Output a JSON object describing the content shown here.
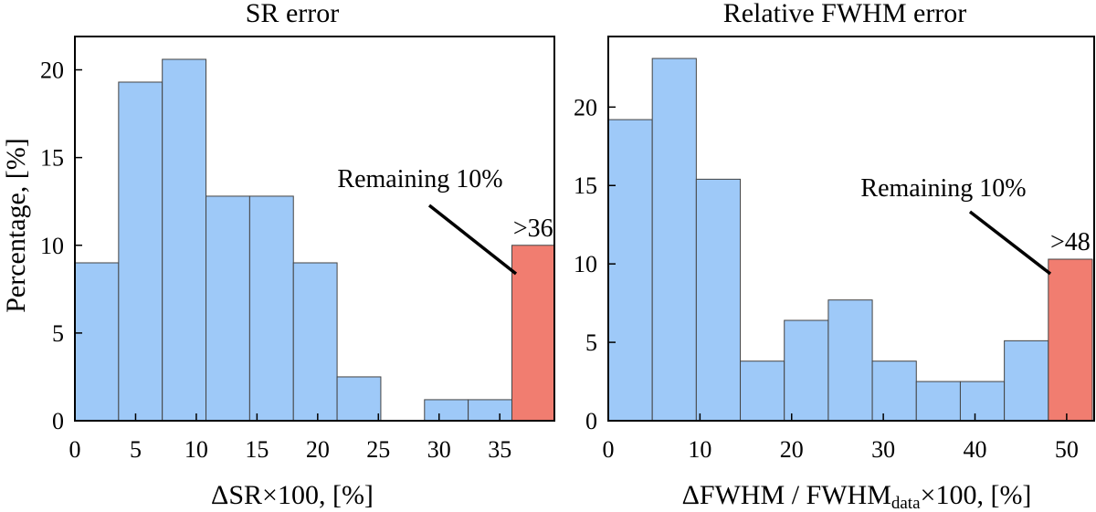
{
  "chart_data": [
    {
      "type": "bar",
      "title": "SR error",
      "xlabel": "ΔSR×100, [%]",
      "ylabel": "Percentage, [%]",
      "xlim": [
        0,
        39.5
      ],
      "ylim": [
        0,
        21.9
      ],
      "xticks": [
        0,
        5,
        10,
        15,
        20,
        25,
        30,
        35
      ],
      "yticks": [
        0,
        5,
        10,
        15,
        20
      ],
      "bin_edges": [
        0,
        3.6,
        7.2,
        10.8,
        14.4,
        18.0,
        21.6,
        25.2,
        28.8,
        32.4,
        36.0,
        39.6
      ],
      "values": [
        9.0,
        19.3,
        20.6,
        12.8,
        12.8,
        9.0,
        2.5,
        0,
        1.2,
        1.2,
        10.0
      ],
      "highlight_last": true,
      "annotation": {
        "text": "Remaining 10%",
        "bin_label": ">36"
      },
      "colors": {
        "bar": "#9ec9f8",
        "highlight": "#f17d70",
        "edge": "#444444"
      }
    },
    {
      "type": "bar",
      "title": "Relative FWHM error",
      "xlabel_main": "ΔFWHM / FWHM",
      "xlabel_sub": "data",
      "xlabel_tail": "×100, [%]",
      "ylabel": "",
      "xlim": [
        0,
        53
      ],
      "ylim": [
        0,
        24.5
      ],
      "xticks": [
        0,
        10,
        20,
        30,
        40,
        50
      ],
      "yticks": [
        0,
        5,
        10,
        15,
        20
      ],
      "bin_edges": [
        0,
        4.8,
        9.6,
        14.4,
        19.2,
        24.0,
        28.8,
        33.6,
        38.4,
        43.2,
        48.0,
        52.8
      ],
      "values": [
        19.2,
        23.1,
        15.4,
        3.8,
        6.4,
        7.7,
        3.8,
        2.5,
        2.5,
        5.1,
        10.3
      ],
      "highlight_last": true,
      "annotation": {
        "text": "Remaining 10%",
        "bin_label": ">48"
      },
      "colors": {
        "bar": "#9ec9f8",
        "highlight": "#f17d70",
        "edge": "#444444"
      }
    }
  ]
}
